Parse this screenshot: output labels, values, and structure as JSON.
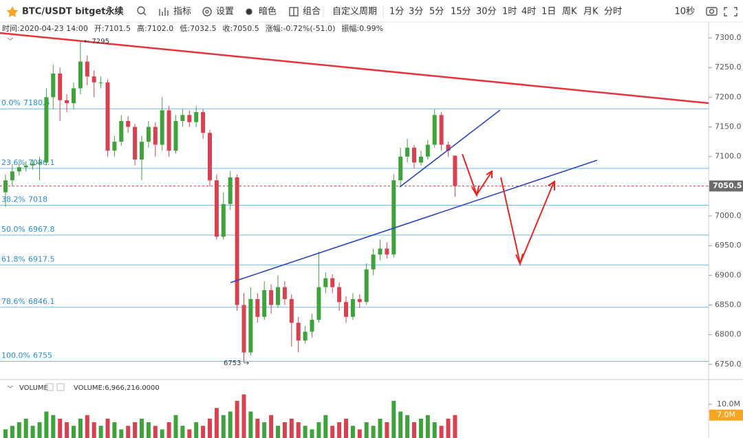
{
  "toolbar": {
    "symbol": "BTC/USDT bitget永续",
    "tools": [
      "指标",
      "设置",
      "暗色",
      "组合"
    ],
    "custom": "自定义周期",
    "periods": [
      "1分",
      "3分",
      "5分",
      "15分",
      "30分",
      "1时",
      "4时",
      "1日",
      "周K",
      "月K",
      "分时"
    ],
    "active": 5,
    "refresh": "10秒"
  },
  "info": [
    {
      "label": "时间:",
      "value": "2020-04-23 14:00"
    },
    {
      "label": "开:",
      "value": "7101.5"
    },
    {
      "label": "高:",
      "value": "7102.0"
    },
    {
      "label": "低:",
      "value": "7032.5"
    },
    {
      "label": "收:",
      "value": "7050.5"
    },
    {
      "label": "涨幅:",
      "value": "-0.72%(-51.0)"
    },
    {
      "label": "振幅:",
      "value": "0.99%"
    }
  ],
  "chart_data": {
    "type": "candlestick",
    "up_color": "#3ea33a",
    "down_color": "#d8414f",
    "open": [
      7040,
      7060,
      7075,
      7082,
      7085,
      7088,
      7090,
      7200,
      7240,
      7195,
      7190,
      7215,
      7260,
      7235,
      7225,
      7225,
      7110,
      7125,
      7160,
      7150,
      7095,
      7125,
      7150,
      7120,
      7178,
      7110,
      7160,
      7170,
      7158,
      7175,
      7140,
      7060,
      6965,
      7020,
      7065,
      6850,
      6770,
      6860,
      6830,
      6875,
      6850,
      6880,
      6860,
      6820,
      6790,
      6805,
      6825,
      6880,
      6895,
      6880,
      6855,
      6830,
      6860,
      6855,
      6910,
      6935,
      6945,
      6935,
      7060,
      7100,
      7115,
      7090,
      7100,
      7120,
      7170,
      7120,
      7101.5
    ],
    "high": [
      7070,
      7085,
      7090,
      7092,
      7095,
      7100,
      7215,
      7255,
      7250,
      7205,
      7225,
      7295,
      7270,
      7245,
      7235,
      7230,
      7135,
      7170,
      7168,
      7155,
      7135,
      7160,
      7158,
      7200,
      7185,
      7170,
      7180,
      7178,
      7185,
      7180,
      7145,
      7070,
      7040,
      7075,
      7070,
      6870,
      6880,
      6870,
      6890,
      6885,
      6900,
      6890,
      6868,
      6830,
      6815,
      6835,
      6940,
      6905,
      6902,
      6888,
      6865,
      6870,
      6868,
      6920,
      6945,
      6960,
      6955,
      7070,
      7115,
      7130,
      7120,
      7110,
      7128,
      7180,
      7175,
      7125,
      7102
    ],
    "low": [
      7015,
      7050,
      7068,
      7075,
      7078,
      7060,
      7085,
      7180,
      7160,
      7175,
      7180,
      7205,
      7220,
      7200,
      7215,
      7100,
      7100,
      7118,
      7140,
      7085,
      7060,
      7115,
      7100,
      7110,
      7100,
      7105,
      7150,
      7150,
      7150,
      7130,
      7050,
      6960,
      6960,
      7010,
      6840,
      6753,
      6765,
      6820,
      6825,
      6835,
      6845,
      6850,
      6780,
      6770,
      6785,
      6795,
      6820,
      6870,
      6870,
      6840,
      6820,
      6825,
      6845,
      6850,
      6900,
      6925,
      6928,
      6930,
      7050,
      7090,
      7080,
      7085,
      7095,
      7115,
      7110,
      7100,
      7032.5
    ],
    "close": [
      7060,
      7075,
      7082,
      7085,
      7088,
      7090,
      7200,
      7240,
      7195,
      7190,
      7215,
      7260,
      7235,
      7225,
      7225,
      7110,
      7125,
      7160,
      7150,
      7095,
      7125,
      7150,
      7120,
      7178,
      7110,
      7160,
      7170,
      7158,
      7175,
      7140,
      7060,
      6965,
      7020,
      7065,
      6850,
      6770,
      6860,
      6830,
      6875,
      6850,
      6880,
      6860,
      6820,
      6790,
      6805,
      6825,
      6880,
      6895,
      6880,
      6855,
      6830,
      6860,
      6855,
      6910,
      6935,
      6945,
      6935,
      7060,
      7100,
      7115,
      7090,
      7100,
      7120,
      7170,
      7120,
      7110,
      7050.5
    ],
    "ylim": [
      6729,
      7324.4
    ],
    "yticks": [
      {
        "value": 6750,
        "label": "6750.0"
      },
      {
        "value": 6800,
        "label": "6800.0"
      },
      {
        "value": 6850,
        "label": "6850.0"
      },
      {
        "value": 6900,
        "label": "6900.0"
      },
      {
        "value": 6950,
        "label": "6950.0"
      },
      {
        "value": 7000,
        "label": "7000.0"
      },
      {
        "value": 7050,
        "label": "7050.0"
      },
      {
        "value": 7100,
        "label": "7100.0"
      },
      {
        "value": 7150,
        "label": "7150.0"
      },
      {
        "value": 7200,
        "label": "7200.0"
      },
      {
        "value": 7250,
        "label": "7250.0"
      },
      {
        "value": 7300,
        "label": "7300.0"
      }
    ],
    "last_price": {
      "value": 7050.5,
      "label": "7050.5"
    },
    "fib": [
      {
        "ratio": "0.0%",
        "price": 7180.5
      },
      {
        "ratio": "23.6%",
        "price": 7080.1
      },
      {
        "ratio": "38.2%",
        "price": 7018.0
      },
      {
        "ratio": "50.0%",
        "price": 6967.8
      },
      {
        "ratio": "61.8%",
        "price": 6917.5
      },
      {
        "ratio": "78.6%",
        "price": 6846.1
      },
      {
        "ratio": "100.0%",
        "price": 6755.0
      }
    ],
    "annotations": [
      "← 7295",
      "6753 →"
    ],
    "volume": {
      "legend": "VOLUME",
      "readout": "VOLUME:6,966,216.0000",
      "values": [
        3,
        4,
        5,
        6,
        4,
        5,
        8,
        7,
        6,
        5,
        4,
        6,
        7,
        5,
        4,
        6,
        5,
        3,
        4,
        5,
        6,
        5,
        4,
        3,
        5,
        7,
        4,
        3,
        5,
        4,
        6,
        9,
        7,
        8,
        11,
        12.8,
        8,
        6,
        5,
        7,
        4,
        5,
        6,
        5,
        4,
        3,
        5,
        7,
        4,
        5,
        6,
        4,
        3,
        5,
        4,
        6,
        5,
        11,
        8,
        7,
        5,
        6,
        7,
        5,
        4,
        6,
        7
      ],
      "ylim": [
        0,
        16
      ],
      "yticks": [
        {
          "value": 10,
          "label": "10.0M"
        }
      ],
      "last": {
        "value": 7,
        "label": "7.0M"
      }
    }
  }
}
